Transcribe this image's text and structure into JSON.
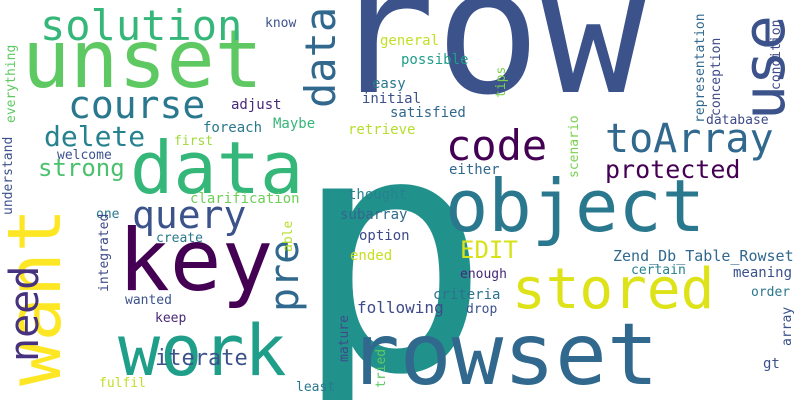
{
  "words": [
    {
      "text": "p",
      "color": "#21918c"
    },
    {
      "text": "row",
      "color": "#3b528b"
    },
    {
      "text": "rowset",
      "color": "#31688e"
    },
    {
      "text": "unset",
      "color": "#5ec962"
    },
    {
      "text": "want",
      "color": "#fde725"
    },
    {
      "text": "key",
      "color": "#440154"
    },
    {
      "text": "object",
      "color": "#2a788e"
    },
    {
      "text": "data",
      "color": "#35b779"
    },
    {
      "text": "work",
      "color": "#1f9e89"
    },
    {
      "text": "solution",
      "color": "#35b779"
    },
    {
      "text": "stored",
      "color": "#dde318"
    },
    {
      "text": "course",
      "color": "#2a788e"
    },
    {
      "text": "use",
      "color": "#3b528b"
    },
    {
      "text": "toArray",
      "color": "#31688e"
    },
    {
      "text": "code",
      "color": "#440154"
    },
    {
      "text": "query",
      "color": "#3b528b"
    },
    {
      "text": "data",
      "color": "#31688e"
    },
    {
      "text": "need",
      "color": "#46327e"
    },
    {
      "text": "pre",
      "color": "#31688e"
    },
    {
      "text": "delete",
      "color": "#26828e"
    },
    {
      "text": "protected",
      "color": "#440154"
    },
    {
      "text": "strong",
      "color": "#4ac16d"
    },
    {
      "text": "EDIT",
      "color": "#d8e219"
    },
    {
      "text": "iterate",
      "color": "#3b528b"
    },
    {
      "text": "Zend_Db_Table_Rowset",
      "color": "#31688e"
    },
    {
      "text": "following",
      "color": "#3e4a89"
    },
    {
      "text": "retrieve",
      "color": "#b5de2b"
    },
    {
      "text": "satisfied",
      "color": "#31688e"
    },
    {
      "text": "initial",
      "color": "#3b528b"
    },
    {
      "text": "easy",
      "color": "#2a788e"
    },
    {
      "text": "possible",
      "color": "#1f9e89"
    },
    {
      "text": "general",
      "color": "#c2df23"
    },
    {
      "text": "know",
      "color": "#3b528b"
    },
    {
      "text": "adjust",
      "color": "#482878"
    },
    {
      "text": "foreach",
      "color": "#2a788e"
    },
    {
      "text": "Maybe",
      "color": "#35b779"
    },
    {
      "text": "first",
      "color": "#a0da39"
    },
    {
      "text": "welcome",
      "color": "#3b528b"
    },
    {
      "text": "clarification",
      "color": "#6ece58"
    },
    {
      "text": "thought",
      "color": "#26828e"
    },
    {
      "text": "option",
      "color": "#3e4a89"
    },
    {
      "text": "subarray",
      "color": "#31688e"
    },
    {
      "text": "ended",
      "color": "#c8e020"
    },
    {
      "text": "enough",
      "color": "#482878"
    },
    {
      "text": "criteria",
      "color": "#2c728e"
    },
    {
      "text": "drop",
      "color": "#3b528b"
    },
    {
      "text": "either",
      "color": "#31688e"
    },
    {
      "text": "certain",
      "color": "#26828e"
    },
    {
      "text": "meaning",
      "color": "#3b528b"
    },
    {
      "text": "order",
      "color": "#2a788e"
    },
    {
      "text": "database",
      "color": "#3e4a89"
    },
    {
      "text": "gt",
      "color": "#3b528b"
    },
    {
      "text": "create",
      "color": "#2a788e"
    },
    {
      "text": "one",
      "color": "#2a788e"
    },
    {
      "text": "wanted",
      "color": "#3b528b"
    },
    {
      "text": "keep",
      "color": "#482878"
    },
    {
      "text": "fulfil",
      "color": "#c2df23"
    },
    {
      "text": "least",
      "color": "#2a788e"
    },
    {
      "text": "tried",
      "color": "#5ec962"
    },
    {
      "text": "mature",
      "color": "#3e4a89"
    },
    {
      "text": "everything",
      "color": "#5ec962"
    },
    {
      "text": "understand",
      "color": "#3b528b"
    },
    {
      "text": "integrated",
      "color": "#3e4a89"
    },
    {
      "text": "able",
      "color": "#b5de2b"
    },
    {
      "text": "tips",
      "color": "#7ad151"
    },
    {
      "text": "scenario",
      "color": "#7ad151"
    },
    {
      "text": "representation",
      "color": "#31688e"
    },
    {
      "text": "conception",
      "color": "#3e4a89"
    },
    {
      "text": "condition",
      "color": "#3e4a89"
    },
    {
      "text": "array",
      "color": "#3b528b"
    }
  ]
}
